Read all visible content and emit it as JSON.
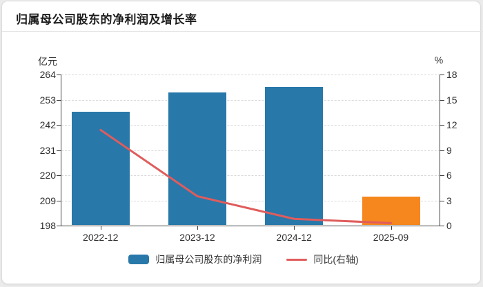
{
  "title": "归属母公司股东的净利润及增长率",
  "legend": {
    "bar_label": "归属母公司股东的净利润",
    "line_label": "同比(右轴)"
  },
  "colors": {
    "bar_blue": "#2878aa",
    "bar_orange": "#f5871e",
    "line_red": "#e05c5c",
    "axis_line": "#3f3f3f",
    "grid": "#d9d9d9"
  },
  "chart_data": {
    "type": "bar",
    "combo": "bar+line",
    "title": "归属母公司股东的净利润及增长率",
    "categories": [
      "2022-12",
      "2023-12",
      "2024-12",
      "2025-09"
    ],
    "series": [
      {
        "name": "归属母公司股东的净利润",
        "type": "bar",
        "axis": "left",
        "unit": "亿元",
        "values": [
          247.8,
          256.3,
          258.5,
          210.8
        ],
        "colors": [
          "#2878aa",
          "#2878aa",
          "#2878aa",
          "#f5871e"
        ]
      },
      {
        "name": "同比(右轴)",
        "type": "line",
        "axis": "right",
        "unit": "%",
        "values": [
          11.4,
          3.5,
          0.8,
          0.3
        ],
        "color": "#e05c5c"
      }
    ],
    "left_axis": {
      "unit": "亿元",
      "min": 198,
      "max": 264,
      "ticks": [
        264,
        253,
        242,
        231,
        220,
        209,
        198
      ]
    },
    "right_axis": {
      "unit": "%",
      "min": 0,
      "max": 18,
      "ticks": [
        18,
        15,
        12,
        9,
        6,
        3,
        0
      ]
    },
    "grid": true,
    "legend_position": "bottom"
  }
}
